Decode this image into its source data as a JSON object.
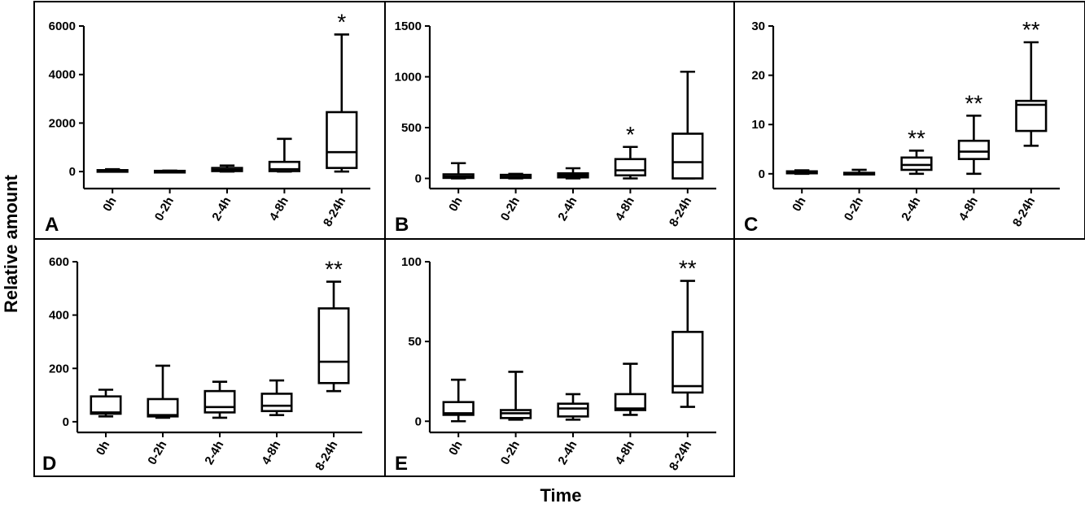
{
  "figure": {
    "ylabel": "Relative amount",
    "xlabel": "Time"
  },
  "chart_data": [
    {
      "panel": "A",
      "type": "boxplot",
      "categories": [
        "0h",
        "0-2h",
        "2-4h",
        "4-8h",
        "8-24h"
      ],
      "yticks": [
        0,
        2000,
        4000,
        6000
      ],
      "ylim": [
        -700,
        6000
      ],
      "boxes": [
        {
          "min": 0,
          "q1": 10,
          "median": 30,
          "q3": 60,
          "max": 100
        },
        {
          "min": 0,
          "q1": 5,
          "median": 15,
          "q3": 30,
          "max": 40
        },
        {
          "min": 0,
          "q1": 20,
          "median": 60,
          "q3": 150,
          "max": 250
        },
        {
          "min": 0,
          "q1": 20,
          "median": 100,
          "q3": 400,
          "max": 1350
        },
        {
          "min": 0,
          "q1": 150,
          "median": 800,
          "q3": 2450,
          "max": 5650
        }
      ],
      "annotations": [
        "",
        "",
        "",
        "",
        "*"
      ]
    },
    {
      "panel": "B",
      "type": "boxplot",
      "categories": [
        "0h",
        "0-2h",
        "2-4h",
        "4-8h",
        "8-24h"
      ],
      "yticks": [
        0,
        500,
        1000,
        1500
      ],
      "ylim": [
        -100,
        1500
      ],
      "boxes": [
        {
          "min": 0,
          "q1": 5,
          "median": 20,
          "q3": 40,
          "max": 150
        },
        {
          "min": 0,
          "q1": 5,
          "median": 15,
          "q3": 35,
          "max": 45
        },
        {
          "min": 0,
          "q1": 10,
          "median": 30,
          "q3": 50,
          "max": 100
        },
        {
          "min": 0,
          "q1": 30,
          "median": 80,
          "q3": 190,
          "max": 310
        },
        {
          "min": 0,
          "q1": 0,
          "median": 160,
          "q3": 440,
          "max": 1050
        }
      ],
      "annotations": [
        "",
        "",
        "",
        "*",
        ""
      ]
    },
    {
      "panel": "C",
      "type": "boxplot",
      "categories": [
        "0h",
        "0-2h",
        "2-4h",
        "4-8h",
        "8-24h"
      ],
      "yticks": [
        0,
        10,
        20,
        30
      ],
      "ylim": [
        -3,
        30
      ],
      "boxes": [
        {
          "min": 0,
          "q1": 0.1,
          "median": 0.3,
          "q3": 0.5,
          "max": 0.7
        },
        {
          "min": 0,
          "q1": 0,
          "median": 0.1,
          "q3": 0.2,
          "max": 0.8
        },
        {
          "min": 0,
          "q1": 0.8,
          "median": 1.8,
          "q3": 3.3,
          "max": 4.7
        },
        {
          "min": 0,
          "q1": 3,
          "median": 4.5,
          "q3": 6.7,
          "max": 11.8
        },
        {
          "min": 5.7,
          "q1": 8.7,
          "median": 14,
          "q3": 14.8,
          "max": 26.7
        }
      ],
      "annotations": [
        "",
        "",
        "**",
        "**",
        "**"
      ]
    },
    {
      "panel": "D",
      "type": "boxplot",
      "categories": [
        "0h",
        "0-2h",
        "2-4h",
        "4-8h",
        "8-24h"
      ],
      "yticks": [
        0,
        200,
        400,
        600
      ],
      "ylim": [
        -40,
        600
      ],
      "boxes": [
        {
          "min": 20,
          "q1": 30,
          "median": 35,
          "q3": 95,
          "max": 120
        },
        {
          "min": 15,
          "q1": 20,
          "median": 25,
          "q3": 85,
          "max": 210
        },
        {
          "min": 15,
          "q1": 35,
          "median": 55,
          "q3": 115,
          "max": 150
        },
        {
          "min": 25,
          "q1": 40,
          "median": 60,
          "q3": 105,
          "max": 155
        },
        {
          "min": 115,
          "q1": 145,
          "median": 225,
          "q3": 425,
          "max": 525
        }
      ],
      "annotations": [
        "",
        "",
        "",
        "",
        "**"
      ]
    },
    {
      "panel": "E",
      "type": "boxplot",
      "categories": [
        "0h",
        "0-2h",
        "2-4h",
        "4-8h",
        "8-24h"
      ],
      "yticks": [
        0,
        50,
        100
      ],
      "ylim": [
        -7,
        100
      ],
      "boxes": [
        {
          "min": 0,
          "q1": 4,
          "median": 5,
          "q3": 12,
          "max": 26
        },
        {
          "min": 1,
          "q1": 2,
          "median": 5,
          "q3": 7,
          "max": 31
        },
        {
          "min": 1,
          "q1": 3,
          "median": 8,
          "q3": 11,
          "max": 17
        },
        {
          "min": 4,
          "q1": 7,
          "median": 8,
          "q3": 17,
          "max": 36
        },
        {
          "min": 9,
          "q1": 18,
          "median": 22,
          "q3": 56,
          "max": 88
        }
      ],
      "annotations": [
        "",
        "",
        "",
        "",
        "**"
      ]
    }
  ]
}
